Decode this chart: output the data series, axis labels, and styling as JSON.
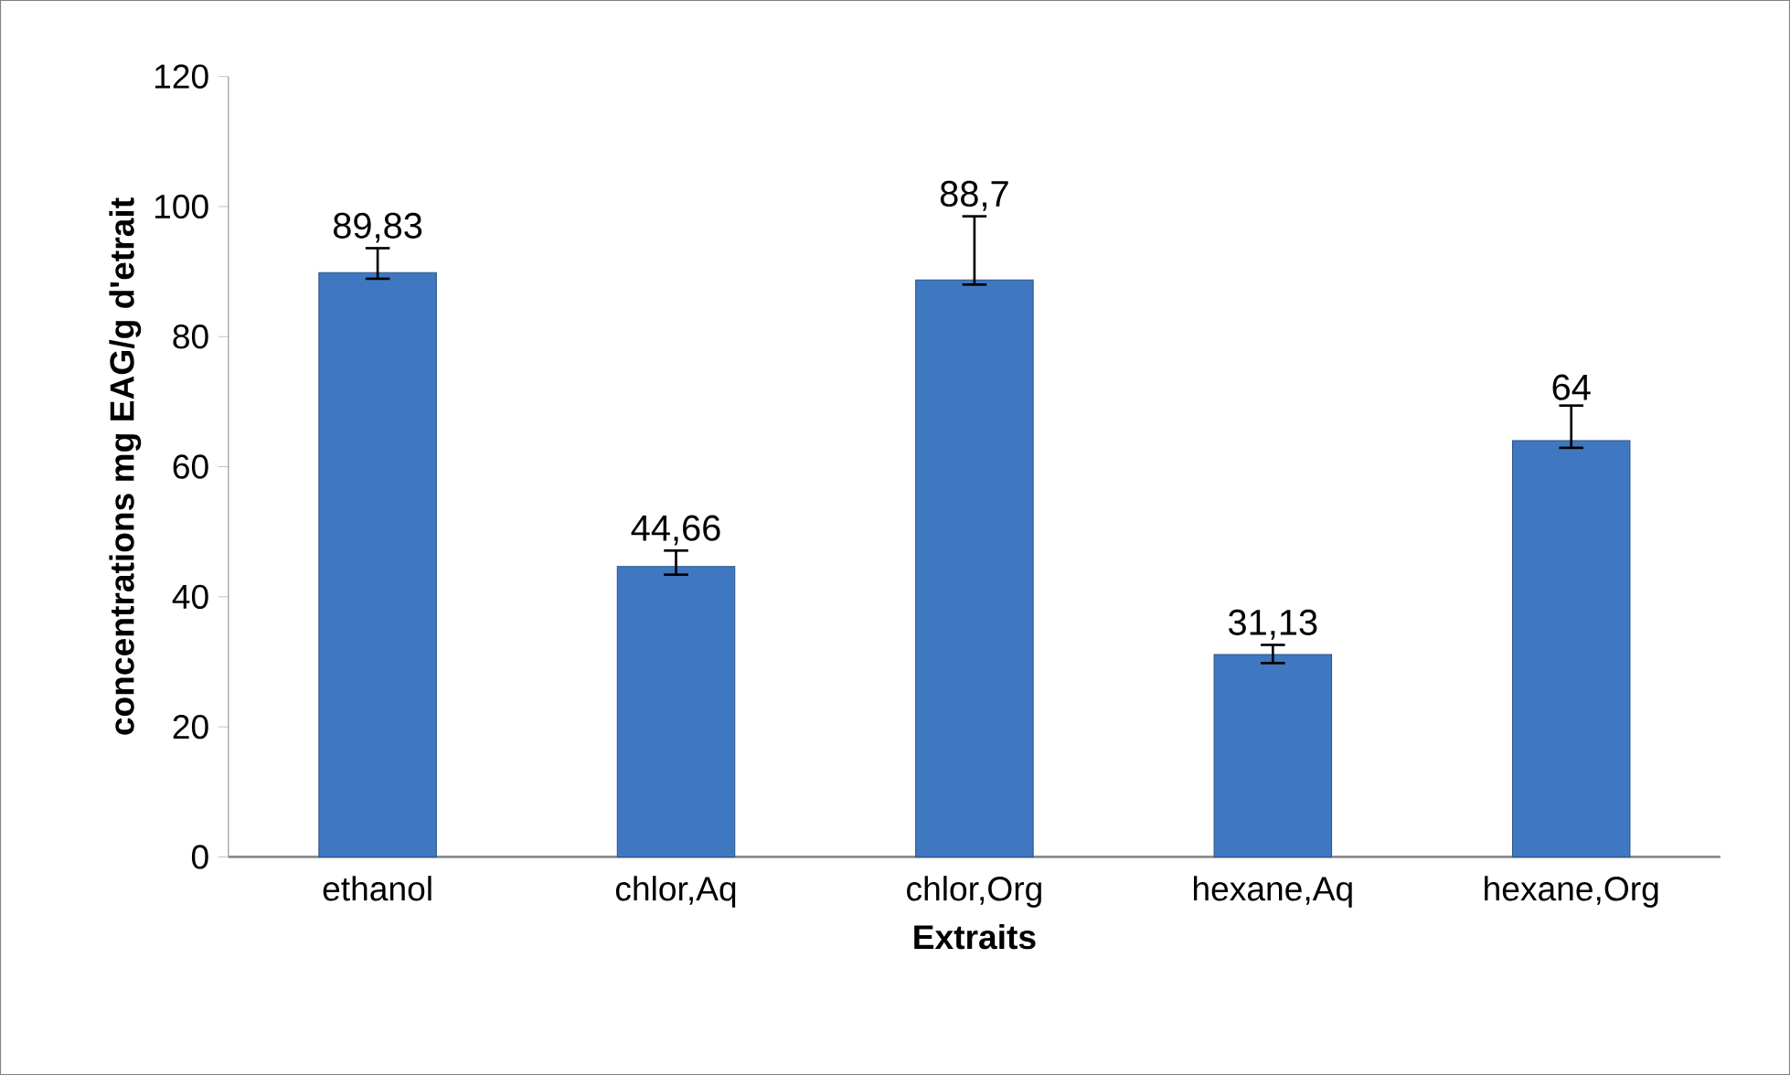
{
  "chart_data": {
    "type": "bar",
    "xlabel": "Extraits",
    "ylabel": "concentrations mg EAG/g d'etrait",
    "categories": [
      "ethanol",
      "chlor,Aq",
      "chlor,Org",
      "hexane,Aq",
      "hexane,Org"
    ],
    "values": [
      89.83,
      44.66,
      88.7,
      31.13,
      64
    ],
    "value_labels": [
      "89,83",
      "44,66",
      "88,7",
      "31,13",
      "64"
    ],
    "errors": [
      [
        88.9,
        93.6
      ],
      [
        43.4,
        47.1
      ],
      [
        88.0,
        98.5
      ],
      [
        29.8,
        32.6
      ],
      [
        62.9,
        69.4
      ]
    ],
    "color": "#3f78c1",
    "ylim": [
      0,
      120
    ],
    "yticks": [
      0,
      20,
      40,
      60,
      80,
      100,
      120
    ],
    "grid": false
  }
}
